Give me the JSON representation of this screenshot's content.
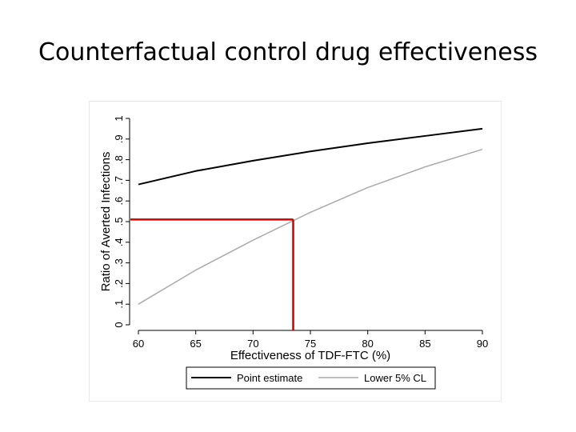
{
  "slide": {
    "title": "Counterfactual control drug effectiveness"
  },
  "chart_data": {
    "type": "line",
    "title": "",
    "xlabel": "Effectiveness of TDF-FTC (%)",
    "ylabel": "Ratio of Averted Infections",
    "xlim": [
      60,
      90
    ],
    "ylim": [
      0,
      1
    ],
    "x_ticks": [
      60,
      65,
      70,
      75,
      80,
      85,
      90
    ],
    "x_tick_labels": [
      "60",
      "65",
      "70",
      "75",
      "80",
      "85",
      "90"
    ],
    "y_ticks": [
      0,
      0.1,
      0.2,
      0.3,
      0.4,
      0.5,
      0.6,
      0.7,
      0.8,
      0.9,
      1
    ],
    "y_tick_labels": [
      "0",
      ".1",
      ".2",
      ".3",
      ".4",
      ".5",
      ".6",
      ".7",
      ".8",
      ".9",
      "1"
    ],
    "grid": false,
    "legend_position": "bottom",
    "series": [
      {
        "name": "Point estimate",
        "color": "#000000",
        "x": [
          60,
          65,
          70,
          75,
          80,
          85,
          90
        ],
        "values": [
          0.68,
          0.745,
          0.795,
          0.84,
          0.88,
          0.915,
          0.95
        ]
      },
      {
        "name": "Lower 5% CL",
        "color": "#aaaaaa",
        "x": [
          60,
          65,
          70,
          75,
          80,
          85,
          90
        ],
        "values": [
          0.1,
          0.265,
          0.41,
          0.545,
          0.665,
          0.765,
          0.85
        ]
      }
    ],
    "reference_lines": {
      "color": "#cc0000",
      "y_level": 0.51,
      "x_level": 73.5
    }
  }
}
